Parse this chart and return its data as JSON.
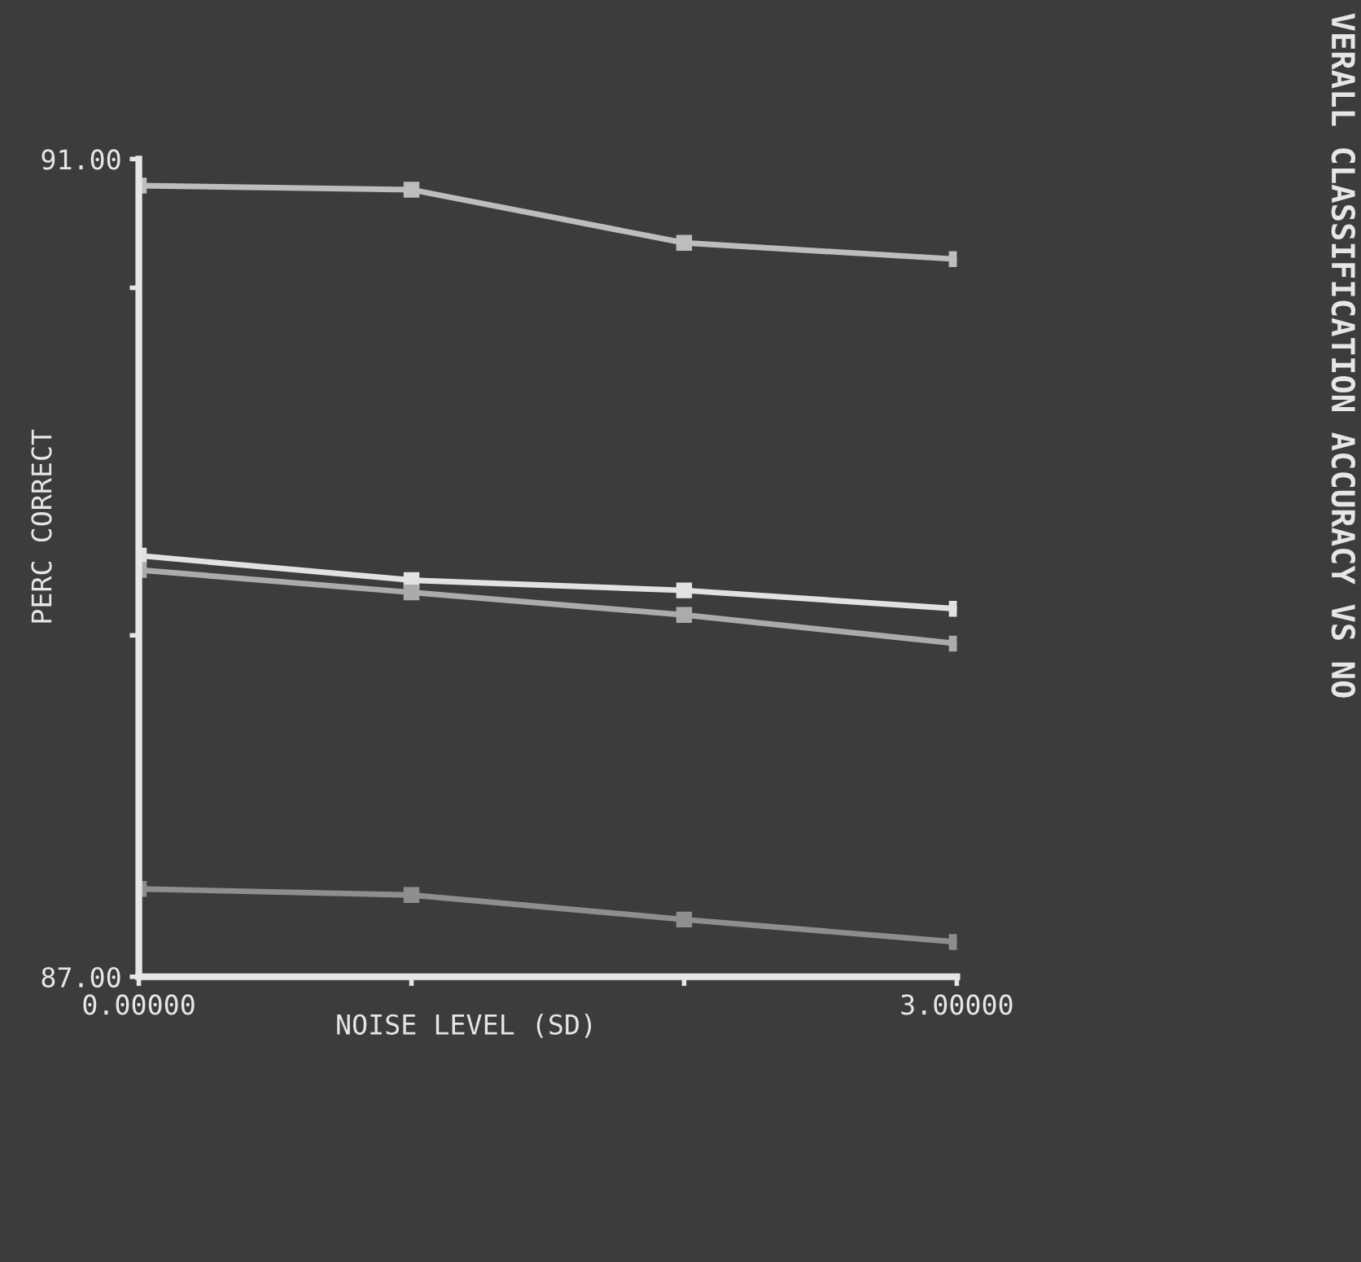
{
  "chart_data": {
    "type": "line",
    "title": "VERALL CLASSIFICATION ACCURACY VS NO",
    "xlabel": "NOISE LEVEL (SD)",
    "ylabel": "PERC CORRECT",
    "x": [
      0,
      1,
      2,
      3
    ],
    "series": [
      {
        "color": "#bdbdbd",
        "values": [
          90.87,
          90.85,
          90.59,
          90.51
        ]
      },
      {
        "color": "#e2e2e2",
        "values": [
          89.06,
          88.94,
          88.89,
          88.8
        ]
      },
      {
        "color": "#ababab",
        "values": [
          88.99,
          88.88,
          88.77,
          88.63
        ]
      },
      {
        "color": "#8e8e8e",
        "values": [
          87.43,
          87.4,
          87.28,
          87.17
        ]
      }
    ],
    "xlim": [
      0,
      3
    ],
    "ylim": [
      87,
      91
    ],
    "xticks": [
      {
        "value": 0,
        "label": "0.00000"
      },
      {
        "value": 1,
        "label": null
      },
      {
        "value": 2,
        "label": null
      },
      {
        "value": 3,
        "label": "3.00000"
      }
    ],
    "yticks": [
      {
        "value": 87,
        "label": "87.00"
      },
      {
        "value": 88.67,
        "label": null
      },
      {
        "value": 90.37,
        "label": null
      },
      {
        "value": 91,
        "label": "91.00"
      }
    ],
    "marker": "square",
    "line_style": "solid",
    "grid": false,
    "legend": false
  }
}
